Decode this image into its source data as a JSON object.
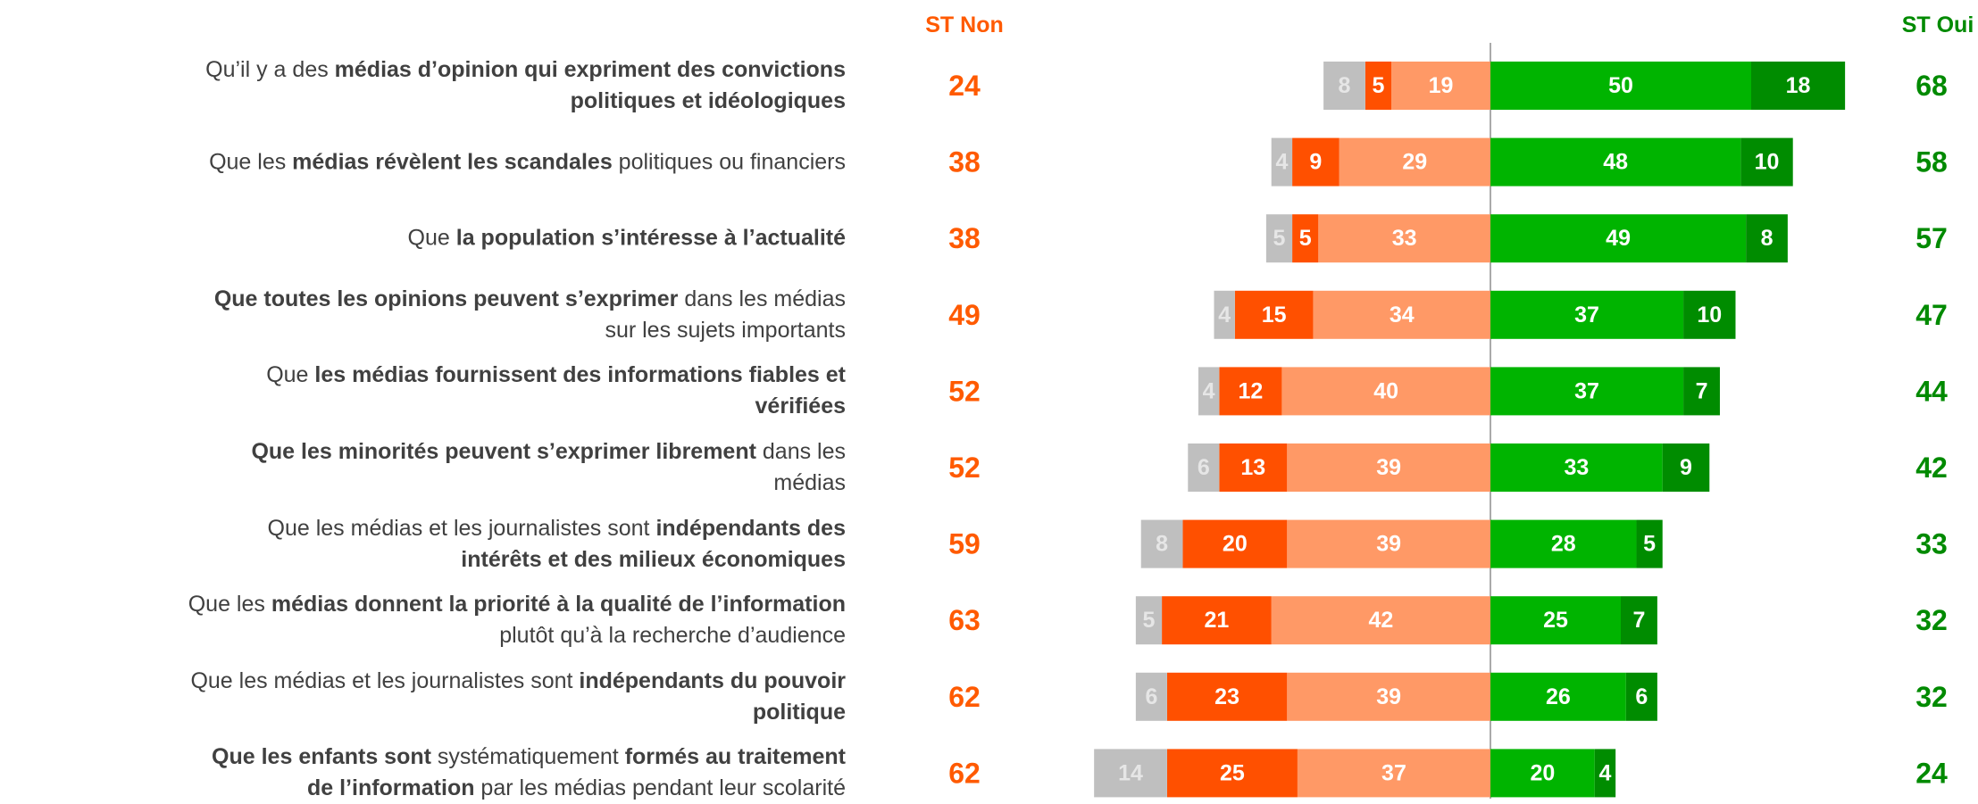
{
  "chart_data": {
    "type": "diverging_bar",
    "left_header": "ST Non",
    "right_header": "ST Oui",
    "left_header_color": "#ff5a00",
    "right_header_color": "#008a00",
    "categories": [
      [
        [
          {
            "text": "Qu’il y a des ",
            "bold": false
          },
          {
            "text": "médias d’opinion qui expriment des convictions",
            "bold": true
          }
        ],
        [
          {
            "text": "politiques et idéologiques",
            "bold": true
          }
        ]
      ],
      [
        [
          {
            "text": "Que les ",
            "bold": false
          },
          {
            "text": "médias révèlent les scandales",
            "bold": true
          },
          {
            "text": " politiques ou financiers",
            "bold": false
          }
        ]
      ],
      [
        [
          {
            "text": "Que ",
            "bold": false
          },
          {
            "text": "la population s’intéresse à l’actualité",
            "bold": true
          }
        ]
      ],
      [
        [
          {
            "text": "Que toutes les opinions peuvent s’exprimer",
            "bold": true
          },
          {
            "text": " dans les médias",
            "bold": false
          }
        ],
        [
          {
            "text": "sur les sujets importants",
            "bold": false
          }
        ]
      ],
      [
        [
          {
            "text": "Que ",
            "bold": false
          },
          {
            "text": "les médias fournissent des informations fiables et",
            "bold": true
          }
        ],
        [
          {
            "text": "vérifiées",
            "bold": true
          }
        ]
      ],
      [
        [
          {
            "text": "Que les minorités peuvent s’exprimer librement",
            "bold": true
          },
          {
            "text": " dans les",
            "bold": false
          }
        ],
        [
          {
            "text": "médias",
            "bold": false
          }
        ]
      ],
      [
        [
          {
            "text": "Que les médias et les journalistes sont ",
            "bold": false
          },
          {
            "text": "indépendants des",
            "bold": true
          }
        ],
        [
          {
            "text": "intérêts et des milieux économiques",
            "bold": true
          }
        ]
      ],
      [
        [
          {
            "text": "Que les ",
            "bold": false
          },
          {
            "text": "médias donnent la priorité à la qualité de l’information",
            "bold": true
          }
        ],
        [
          {
            "text": "plutôt qu’à la recherche d’audience",
            "bold": false
          }
        ]
      ],
      [
        [
          {
            "text": "Que les médias et les journalistes sont ",
            "bold": false
          },
          {
            "text": "indépendants du pouvoir",
            "bold": true
          }
        ],
        [
          {
            "text": "politique",
            "bold": true
          }
        ]
      ],
      [
        [
          {
            "text": "Que les enfants sont",
            "bold": true
          },
          {
            "text": " systématiquement ",
            "bold": false
          },
          {
            "text": "formés au traitement",
            "bold": true
          }
        ],
        [
          {
            "text": "de l’information",
            "bold": true
          },
          {
            "text": " par les médias pendant leur scolarité",
            "bold": false
          }
        ]
      ]
    ],
    "series": [
      {
        "side": "left",
        "color": "#ff9966",
        "text_color": "#ffffff",
        "values": [
          19,
          29,
          33,
          34,
          40,
          39,
          39,
          42,
          39,
          37
        ]
      },
      {
        "side": "left",
        "color": "#ff5000",
        "text_color": "#ffffff",
        "values": [
          5,
          9,
          5,
          15,
          12,
          13,
          20,
          21,
          23,
          25
        ]
      },
      {
        "side": "left",
        "color": "#bfbfbf",
        "text_color": "#e6e6e6",
        "values": [
          8,
          4,
          5,
          4,
          4,
          6,
          8,
          5,
          6,
          14
        ]
      },
      {
        "side": "right",
        "color": "#00b400",
        "text_color": "#ffffff",
        "values": [
          50,
          48,
          49,
          37,
          37,
          33,
          28,
          25,
          26,
          20
        ]
      },
      {
        "side": "right",
        "color": "#008c00",
        "text_color": "#ffffff",
        "values": [
          18,
          10,
          8,
          10,
          7,
          9,
          5,
          7,
          6,
          4
        ]
      }
    ],
    "left_totals": [
      24,
      38,
      38,
      49,
      52,
      52,
      59,
      63,
      62,
      62
    ],
    "right_totals": [
      68,
      58,
      57,
      47,
      44,
      42,
      33,
      32,
      32,
      24
    ]
  }
}
